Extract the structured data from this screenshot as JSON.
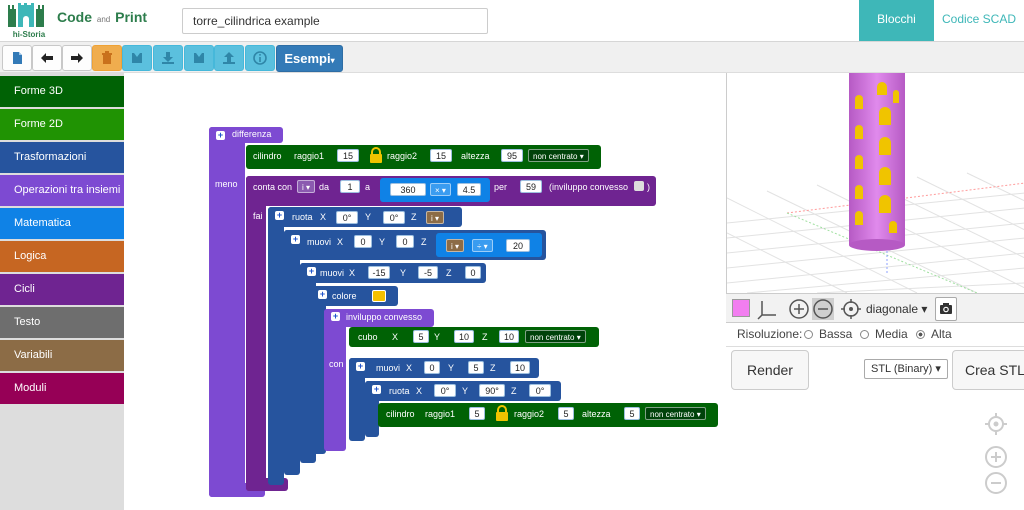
{
  "header": {
    "logo_text": "hi-Storia",
    "app_name_code": "Code",
    "app_name_and": "and",
    "app_name_print": "Print",
    "project_name": "torre_cilindrica example",
    "tab_blocks": "Blocchi",
    "tab_scad": "Codice SCAD",
    "accent_color": "#3eb7b8",
    "brand_color": "#2d7d4c"
  },
  "toolbar": {
    "buttons": [
      "new-file-icon",
      "undo-icon",
      "redo-icon",
      "trash-icon",
      "save-icon",
      "download-icon",
      "save-as-icon",
      "upload-icon",
      "info-icon"
    ],
    "examples_label": "Esempi"
  },
  "sidebar": {
    "categories": [
      {
        "label": "Forme 3D",
        "color": "#006205"
      },
      {
        "label": "Forme 2D",
        "color": "#209303"
      },
      {
        "label": "Trasformazioni",
        "color": "#26549e"
      },
      {
        "label": "Operazioni tra insiemi",
        "color": "#7d4ad2"
      },
      {
        "label": "Matematica",
        "color": "#0F82E6"
      },
      {
        "label": "Logica",
        "color": "#C66622"
      },
      {
        "label": "Cicli",
        "color": "#6f2491"
      },
      {
        "label": "Testo",
        "color": "#6e6e6e"
      },
      {
        "label": "Variabili",
        "color": "#8c6c46"
      },
      {
        "label": "Moduli",
        "color": "#960056"
      }
    ]
  },
  "blocks": {
    "difference": "differenza",
    "meno": "meno",
    "cylinder": {
      "label": "cilindro",
      "r1_label": "raggio1",
      "r1": "15",
      "r2_label": "raggio2",
      "r2": "15",
      "h_label": "altezza",
      "h": "95",
      "center": "non centrato"
    },
    "loop": {
      "label": "conta con",
      "var": "i",
      "from_label": "da",
      "from": "1",
      "to_label": "a",
      "to_a": "360",
      "op": "×",
      "to_b": "4.5",
      "step_label": "per",
      "step": "59",
      "hull_label": "(inviluppo convesso",
      "close": ")"
    },
    "fai": "fai",
    "rotate1": {
      "label": "ruota",
      "x_label": "X",
      "x": "0°",
      "y_label": "Y",
      "y": "0°",
      "z_label": "Z",
      "z": "i"
    },
    "move1": {
      "label": "muovi",
      "x_label": "X",
      "x": "0",
      "y_label": "Y",
      "y": "0",
      "z_label": "Z",
      "z_var": "i",
      "op": "÷",
      "z_num": "20"
    },
    "move2": {
      "label": "muovi",
      "x_label": "X",
      "x": "-15",
      "y_label": "Y",
      "y": "-5",
      "z_label": "Z",
      "z": "0"
    },
    "color": {
      "label": "colore",
      "swatch": "#f5c000"
    },
    "hull": {
      "label": "inviluppo convesso",
      "con": "con"
    },
    "cube": {
      "label": "cubo",
      "x_label": "X",
      "x": "5",
      "y_label": "Y",
      "y": "10",
      "z_label": "Z",
      "z": "10",
      "center": "non centrato"
    },
    "move3": {
      "label": "muovi",
      "x_label": "X",
      "x": "0",
      "y_label": "Y",
      "y": "5",
      "z_label": "Z",
      "z": "10"
    },
    "rotate2": {
      "label": "ruota",
      "x_label": "X",
      "x": "0°",
      "y_label": "Y",
      "y": "90°",
      "z_label": "Z",
      "z": "0°"
    },
    "cylinder2": {
      "label": "cilindro",
      "r1_label": "raggio1",
      "r1": "5",
      "r2_label": "raggio2",
      "r2": "5",
      "h_label": "altezza",
      "h": "5",
      "center": "non centrato"
    }
  },
  "viewer": {
    "view_label": "diagonale",
    "resolution_label": "Risoluzione:",
    "res_low": "Bassa",
    "res_mid": "Media",
    "res_high": "Alta",
    "render_label": "Render",
    "format": "STL (Binary)",
    "create_stl": "Crea STL",
    "model_color": "#d475e0",
    "window_color": "#f0c400"
  }
}
